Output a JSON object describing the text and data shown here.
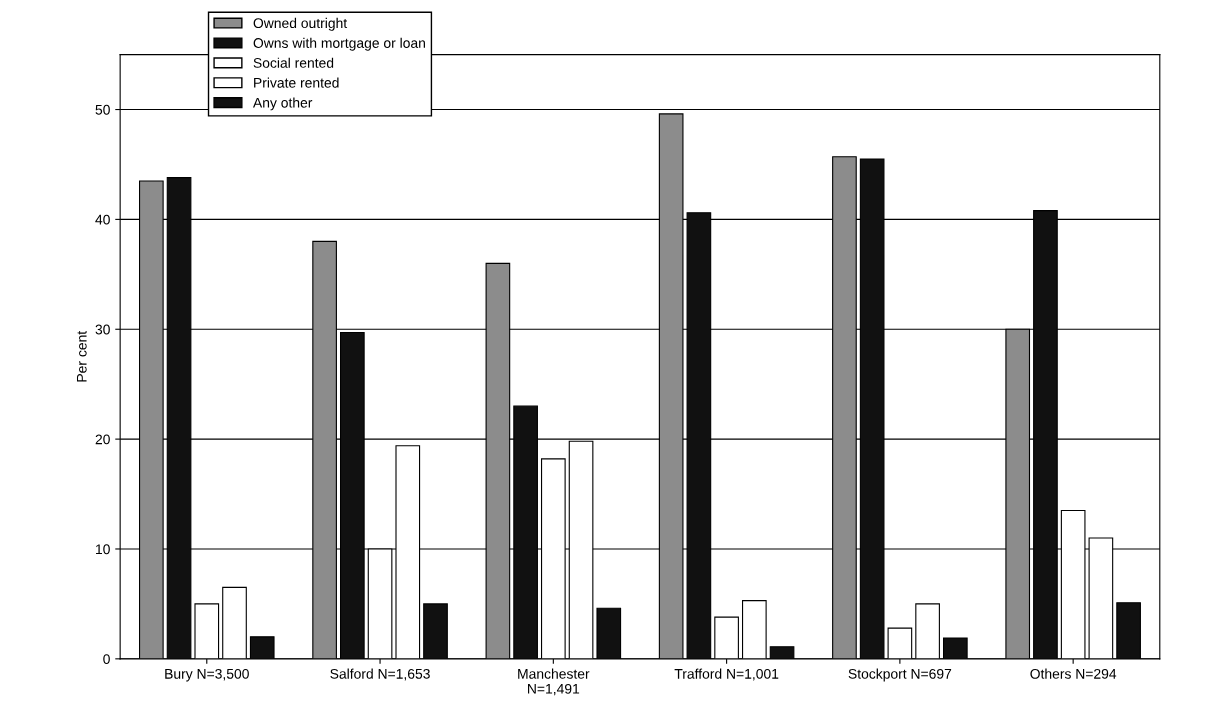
{
  "chart_data": {
    "type": "bar",
    "ylabel": "Per cent",
    "categories": [
      "Bury N=3,500",
      "Salford N=1,653",
      "Manchester\nN=1,491",
      "Trafford N=1,001",
      "Stockport N=697",
      "Others N=294"
    ],
    "series": [
      {
        "name": "Owned outright",
        "color": "#8c8c8c",
        "values": [
          43.5,
          38.0,
          36.0,
          49.6,
          45.7,
          30.0
        ]
      },
      {
        "name": "Owns with mortgage or loan",
        "color": "#111111",
        "values": [
          43.8,
          29.7,
          23.0,
          40.6,
          45.5,
          40.8
        ]
      },
      {
        "name": "Social rented",
        "color": "#ffffff",
        "values": [
          5.0,
          10.0,
          18.2,
          3.8,
          2.8,
          13.5
        ]
      },
      {
        "name": "Private rented",
        "color": "#ffffff",
        "values": [
          6.5,
          19.4,
          19.8,
          5.3,
          5.0,
          11.0
        ]
      },
      {
        "name": "Any other",
        "color": "#111111",
        "values": [
          2.0,
          5.0,
          4.6,
          1.1,
          1.9,
          5.1
        ]
      }
    ],
    "ylim": [
      0,
      55
    ],
    "yticks": [
      0,
      10,
      20,
      30,
      40,
      50
    ],
    "grid": "y",
    "legend": "top left"
  }
}
